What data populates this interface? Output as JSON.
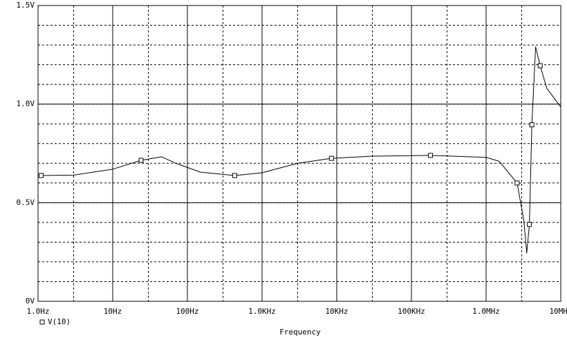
{
  "chart_data": {
    "type": "line",
    "x_label": "Frequency",
    "log_x": true,
    "grid": true,
    "x_minor_grid_multiple": 3,
    "y_minor_grid_step": 0.1,
    "xlim": [
      1,
      10000000
    ],
    "ylim": [
      0,
      1.5
    ],
    "xticks": [
      {
        "value": 1,
        "label": "1.0Hz"
      },
      {
        "value": 10,
        "label": "10Hz"
      },
      {
        "value": 100,
        "label": "100Hz"
      },
      {
        "value": 1000,
        "label": "1.0KHz"
      },
      {
        "value": 10000,
        "label": "10KHz"
      },
      {
        "value": 100000,
        "label": "100KHz"
      },
      {
        "value": 1000000,
        "label": "1.0MHz"
      },
      {
        "value": 10000000,
        "label": "10MHz"
      }
    ],
    "yticks": [
      {
        "value": 0,
        "label": "0V"
      },
      {
        "value": 0.5,
        "label": "0.5V"
      },
      {
        "value": 1.0,
        "label": "1.0V"
      },
      {
        "value": 1.5,
        "label": "1.5V"
      }
    ],
    "series": [
      {
        "name": "V(10)",
        "color": "#000000",
        "marker": "square",
        "x": [
          1,
          3,
          10,
          24,
          45,
          70,
          150,
          430,
          1000,
          3000,
          8500,
          30000,
          180000,
          1000000,
          1500000,
          2600000,
          3200000,
          3500000,
          3800000,
          4100000,
          4600000,
          5300000,
          6500000,
          10000000
        ],
        "values": [
          0.638,
          0.64,
          0.67,
          0.715,
          0.733,
          0.7,
          0.655,
          0.638,
          0.652,
          0.7,
          0.725,
          0.736,
          0.74,
          0.73,
          0.71,
          0.6,
          0.41,
          0.245,
          0.39,
          0.895,
          1.29,
          1.195,
          1.08,
          0.985
        ],
        "marker_x": [
          1.1,
          24,
          430,
          8500,
          180000,
          2600000,
          3800000,
          4100000,
          5300000
        ],
        "marker_values": [
          0.638,
          0.715,
          0.638,
          0.725,
          0.74,
          0.6,
          0.39,
          0.895,
          1.195
        ]
      }
    ]
  }
}
